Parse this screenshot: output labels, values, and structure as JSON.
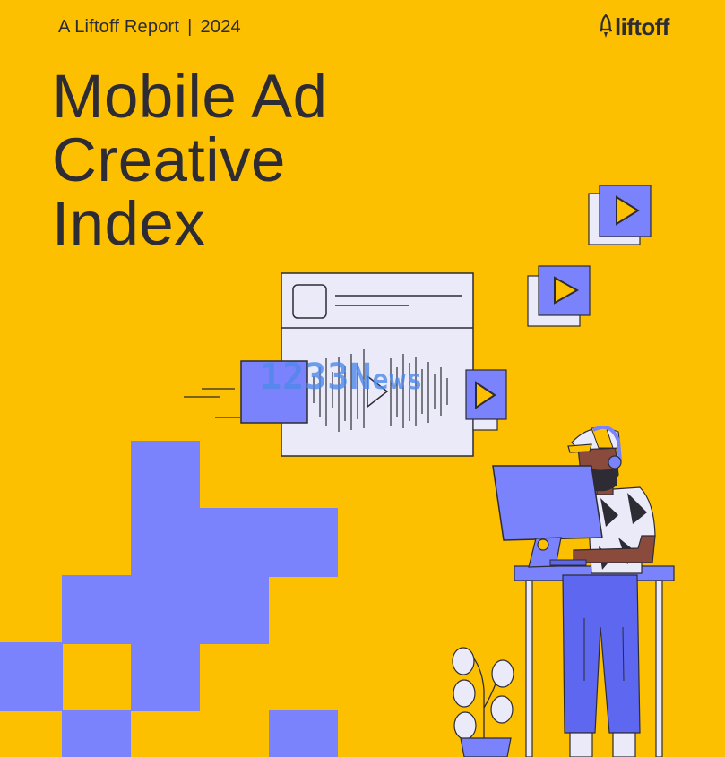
{
  "header": {
    "report_label": "A Liftoff Report",
    "separator": "|",
    "year": "2024",
    "brand_name": "liftoff",
    "brand_icon": "rocket-icon"
  },
  "title": {
    "line1": "Mobile Ad",
    "line2": "Creative",
    "line3": "Index"
  },
  "watermark": {
    "part1": "1233N",
    "part2": "ews"
  },
  "colors": {
    "background": "#fcc000",
    "text": "#2d2b33",
    "accent_purple": "#7a83fb",
    "panel_light": "#ebeaf9",
    "watermark_blue": "#4f89ea"
  }
}
